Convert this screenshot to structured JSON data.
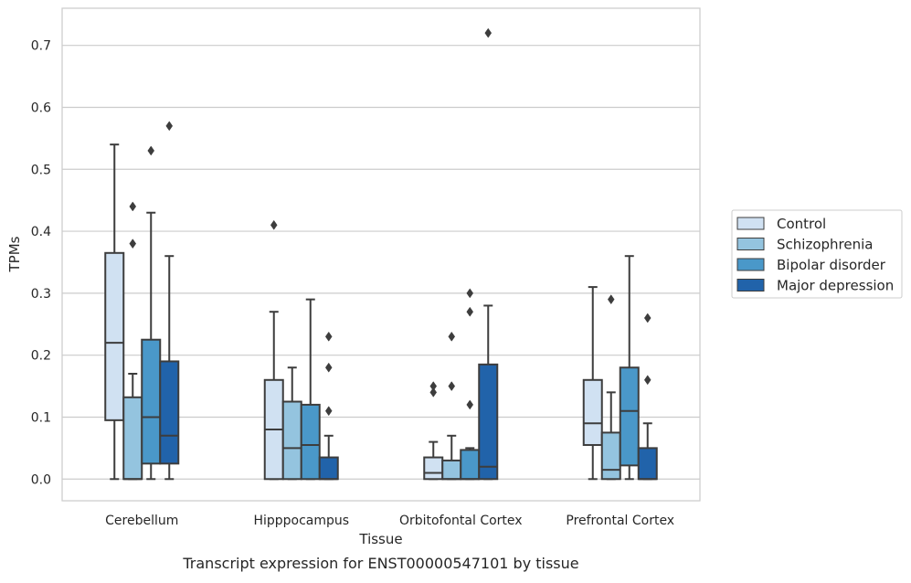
{
  "caption": "Transcript expression for ENST00000547101 by tissue",
  "chart_data": {
    "type": "box",
    "xlabel": "Tissue",
    "ylabel": "TPMs",
    "ylim": [
      -0.035,
      0.76
    ],
    "yticks": [
      "0.0",
      "0.1",
      "0.2",
      "0.3",
      "0.4",
      "0.5",
      "0.6",
      "0.7"
    ],
    "ytick_values": [
      0,
      0.1,
      0.2,
      0.3,
      0.4,
      0.5,
      0.6,
      0.7
    ],
    "grid": "horizontal",
    "legend_position": "right",
    "categories": [
      "Cerebellum",
      "Hipppocampus",
      "Orbitofontal Cortex",
      "Prefrontal Cortex"
    ],
    "series": [
      {
        "name": "Control",
        "color": "#d0e1f2",
        "boxes": [
          {
            "whislo": 0.0,
            "q1": 0.095,
            "median": 0.22,
            "q3": 0.365,
            "whishi": 0.54,
            "fliers": []
          },
          {
            "whislo": 0.0,
            "q1": 0.0,
            "median": 0.08,
            "q3": 0.16,
            "whishi": 0.27,
            "fliers": [
              0.41
            ]
          },
          {
            "whislo": 0.0,
            "q1": 0.0,
            "median": 0.01,
            "q3": 0.035,
            "whishi": 0.06,
            "fliers": [
              0.14,
              0.15
            ]
          },
          {
            "whislo": 0.0,
            "q1": 0.055,
            "median": 0.09,
            "q3": 0.16,
            "whishi": 0.31,
            "fliers": []
          }
        ]
      },
      {
        "name": "Schizophrenia",
        "color": "#94c4df",
        "boxes": [
          {
            "whislo": 0.0,
            "q1": 0.0,
            "median": 0.0,
            "q3": 0.132,
            "whishi": 0.17,
            "fliers": [
              0.38,
              0.44
            ]
          },
          {
            "whislo": 0.0,
            "q1": 0.0,
            "median": 0.05,
            "q3": 0.125,
            "whishi": 0.18,
            "fliers": []
          },
          {
            "whislo": 0.0,
            "q1": 0.0,
            "median": 0.0,
            "q3": 0.03,
            "whishi": 0.07,
            "fliers": [
              0.15,
              0.23
            ]
          },
          {
            "whislo": 0.0,
            "q1": 0.0,
            "median": 0.015,
            "q3": 0.075,
            "whishi": 0.14,
            "fliers": [
              0.29
            ]
          }
        ]
      },
      {
        "name": "Bipolar disorder",
        "color": "#4a98c9",
        "boxes": [
          {
            "whislo": 0.0,
            "q1": 0.025,
            "median": 0.1,
            "q3": 0.225,
            "whishi": 0.43,
            "fliers": [
              0.53
            ]
          },
          {
            "whislo": 0.0,
            "q1": 0.0,
            "median": 0.055,
            "q3": 0.12,
            "whishi": 0.29,
            "fliers": []
          },
          {
            "whislo": 0.0,
            "q1": 0.0,
            "median": 0.0,
            "q3": 0.047,
            "whishi": 0.05,
            "fliers": [
              0.12,
              0.27,
              0.3
            ]
          },
          {
            "whislo": 0.0,
            "q1": 0.022,
            "median": 0.11,
            "q3": 0.18,
            "whishi": 0.36,
            "fliers": []
          }
        ]
      },
      {
        "name": "Major depression",
        "color": "#2163aa",
        "boxes": [
          {
            "whislo": 0.0,
            "q1": 0.025,
            "median": 0.07,
            "q3": 0.19,
            "whishi": 0.36,
            "fliers": [
              0.57
            ]
          },
          {
            "whislo": 0.0,
            "q1": 0.0,
            "median": 0.0,
            "q3": 0.035,
            "whishi": 0.07,
            "fliers": [
              0.11,
              0.18,
              0.23
            ]
          },
          {
            "whislo": 0.0,
            "q1": 0.0,
            "median": 0.02,
            "q3": 0.185,
            "whishi": 0.28,
            "fliers": [
              0.72
            ]
          },
          {
            "whislo": 0.0,
            "q1": 0.0,
            "median": 0.0,
            "q3": 0.05,
            "whishi": 0.09,
            "fliers": [
              0.16,
              0.26
            ]
          }
        ]
      }
    ]
  }
}
